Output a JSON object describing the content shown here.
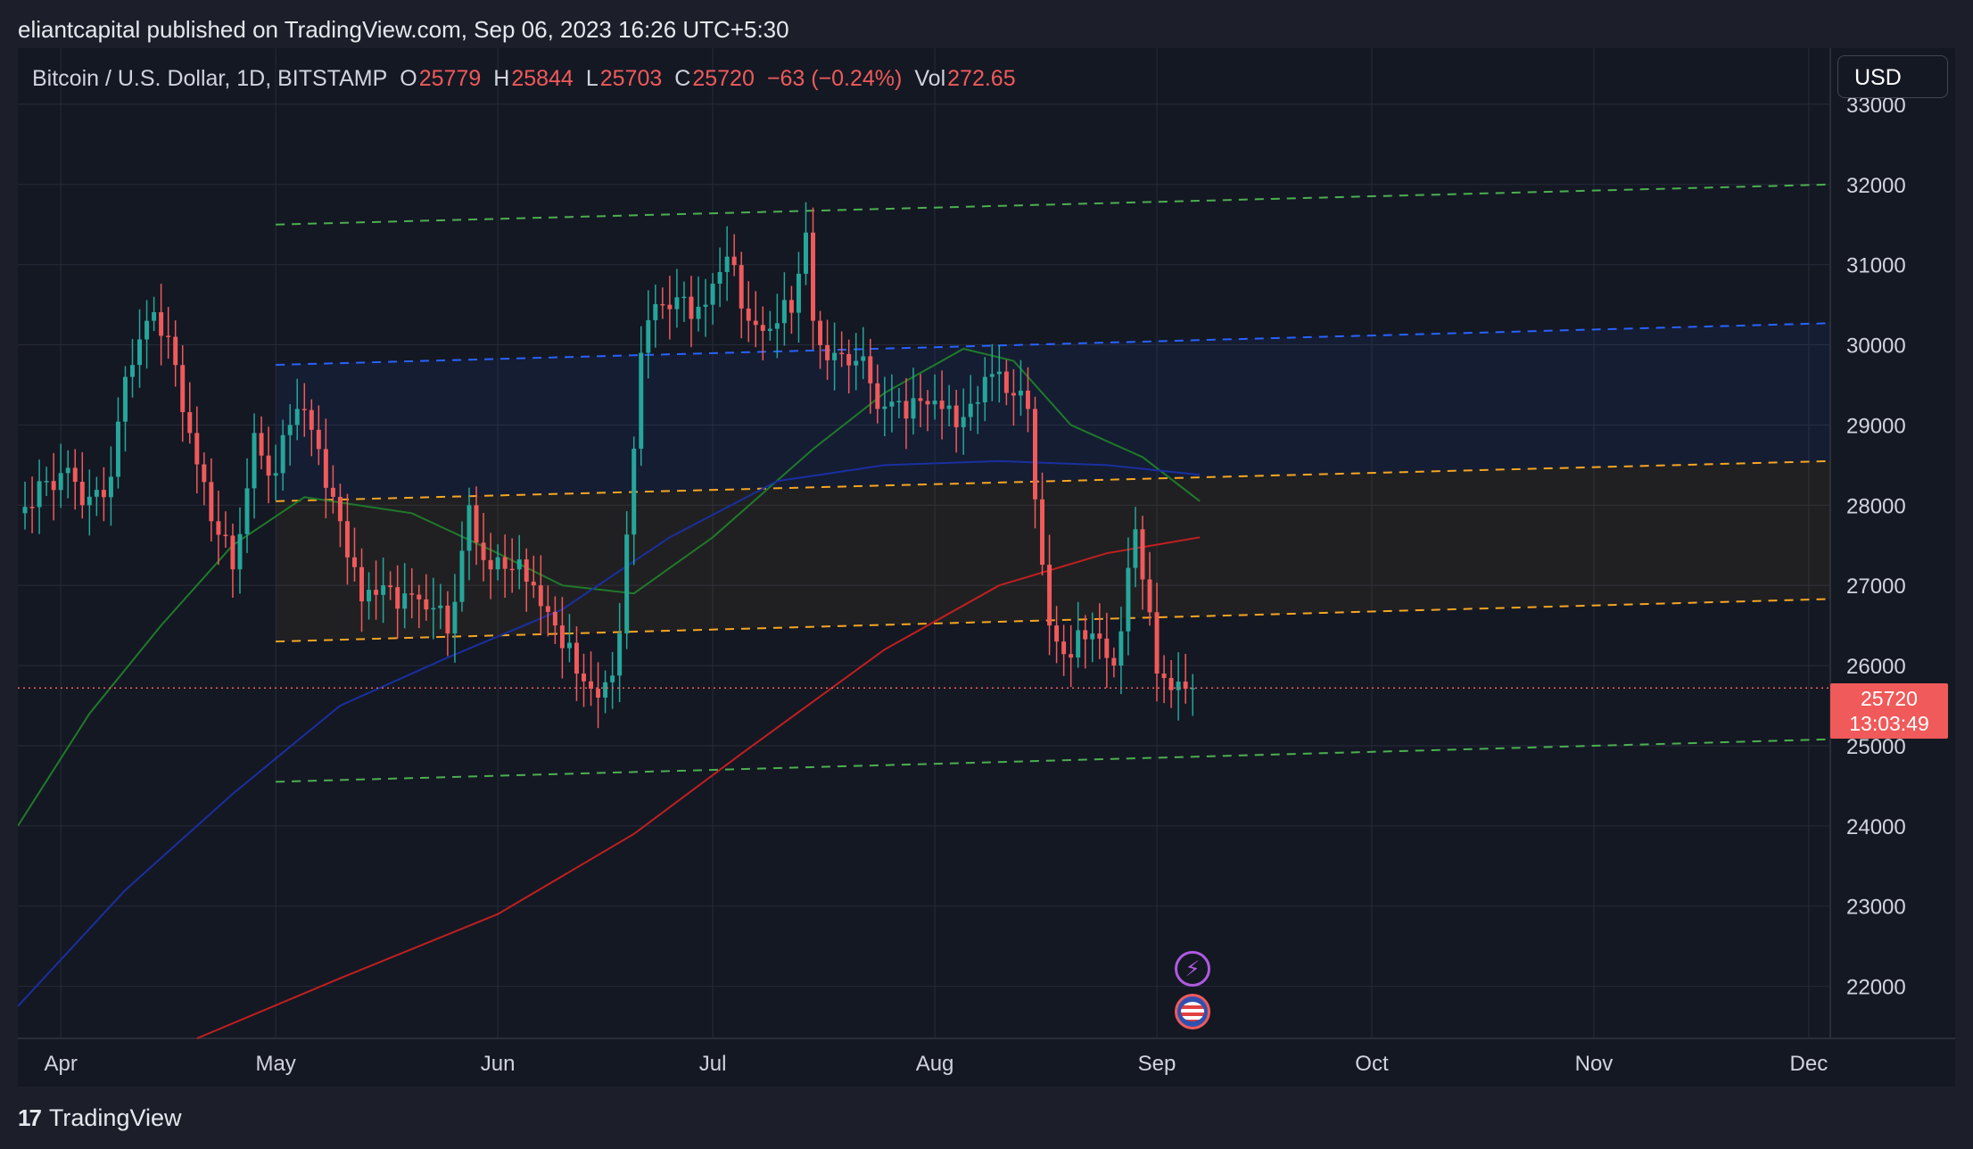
{
  "header": {
    "published": "eliantcapital published on TradingView.com, Sep 06, 2023 16:26 UTC+5:30"
  },
  "legend": {
    "symbol": "Bitcoin / U.S. Dollar, 1D, BITSTAMP",
    "o_label": "O",
    "o_value": "25779",
    "h_label": "H",
    "h_value": "25844",
    "l_label": "L",
    "l_value": "25703",
    "c_label": "C",
    "c_value": "25720",
    "change": "−63 (−0.24%)",
    "vol_label": "Vol",
    "vol_value": "272.65"
  },
  "currency_button": "USD",
  "price_tag": {
    "price": "25720",
    "countdown": "13:03:49"
  },
  "footer": {
    "brand": "TradingView",
    "logo_mark": "17"
  },
  "colors": {
    "up": "#26a69a",
    "down": "#f05a5a",
    "grid": "#262b38",
    "ma_green": "#1f7a2a",
    "ma_blue": "#1a2fa0",
    "ma_red": "#c01f1f",
    "channel_green": "#4caf50",
    "channel_blue": "#2962ff",
    "channel_orange": "#f5a623"
  },
  "chart_data": {
    "type": "candlestick",
    "x_axis_labels": [
      "Apr",
      "May",
      "Jun",
      "Jul",
      "Aug",
      "Sep",
      "Oct",
      "Nov",
      "Dec"
    ],
    "x_axis_label_dates": [
      "2023-04-01",
      "2023-05-01",
      "2023-06-01",
      "2023-07-01",
      "2023-08-01",
      "2023-09-01",
      "2023-10-01",
      "2023-11-01",
      "2023-12-01"
    ],
    "y_axis_labels": [
      33000,
      32000,
      31000,
      30000,
      29000,
      28000,
      27000,
      26000,
      25000,
      24000,
      23000,
      22000
    ],
    "xlim": [
      "2023-03-26",
      "2023-12-04"
    ],
    "ylim": [
      21350,
      33700
    ],
    "last_price": 25720,
    "closes": [
      [
        "2023-03-26",
        27900
      ],
      [
        "2023-03-29",
        28300
      ],
      [
        "2023-04-01",
        28400
      ],
      [
        "2023-04-04",
        28000
      ],
      [
        "2023-04-07",
        28100
      ],
      [
        "2023-04-10",
        29600
      ],
      [
        "2023-04-13",
        30300
      ],
      [
        "2023-04-16",
        30100
      ],
      [
        "2023-04-19",
        28900
      ],
      [
        "2023-04-22",
        27800
      ],
      [
        "2023-04-25",
        27200
      ],
      [
        "2023-04-28",
        28900
      ],
      [
        "2023-05-01",
        28400
      ],
      [
        "2023-05-04",
        29200
      ],
      [
        "2023-05-07",
        28700
      ],
      [
        "2023-05-10",
        27800
      ],
      [
        "2023-05-13",
        26800
      ],
      [
        "2023-05-16",
        27000
      ],
      [
        "2023-05-19",
        26900
      ],
      [
        "2023-05-22",
        26700
      ],
      [
        "2023-05-25",
        26400
      ],
      [
        "2023-05-28",
        28000
      ],
      [
        "2023-05-31",
        27200
      ],
      [
        "2023-06-03",
        27200
      ],
      [
        "2023-06-06",
        27000
      ],
      [
        "2023-06-09",
        26500
      ],
      [
        "2023-06-12",
        25900
      ],
      [
        "2023-06-15",
        25600
      ],
      [
        "2023-06-18",
        26400
      ],
      [
        "2023-06-21",
        29900
      ],
      [
        "2023-06-24",
        30500
      ],
      [
        "2023-06-27",
        30600
      ],
      [
        "2023-06-30",
        30500
      ],
      [
        "2023-07-03",
        31100
      ],
      [
        "2023-07-06",
        30300
      ],
      [
        "2023-07-09",
        30200
      ],
      [
        "2023-07-12",
        30400
      ],
      [
        "2023-07-14",
        31400
      ],
      [
        "2023-07-15",
        30300
      ],
      [
        "2023-07-18",
        29900
      ],
      [
        "2023-07-21",
        29800
      ],
      [
        "2023-07-24",
        29200
      ],
      [
        "2023-07-27",
        29300
      ],
      [
        "2023-07-30",
        29300
      ],
      [
        "2023-08-02",
        29200
      ],
      [
        "2023-08-05",
        29100
      ],
      [
        "2023-08-08",
        29600
      ],
      [
        "2023-08-11",
        29400
      ],
      [
        "2023-08-14",
        29200
      ],
      [
        "2023-08-17",
        26500
      ],
      [
        "2023-08-20",
        26100
      ],
      [
        "2023-08-23",
        26400
      ],
      [
        "2023-08-26",
        26000
      ],
      [
        "2023-08-29",
        27700
      ],
      [
        "2023-09-01",
        25900
      ],
      [
        "2023-09-04",
        25800
      ],
      [
        "2023-09-06",
        25720
      ]
    ],
    "moving_averages": [
      {
        "color_key": "ma_green",
        "points": [
          [
            "2023-03-26",
            24000
          ],
          [
            "2023-04-05",
            25400
          ],
          [
            "2023-04-15",
            26500
          ],
          [
            "2023-04-25",
            27500
          ],
          [
            "2023-05-05",
            28100
          ],
          [
            "2023-05-20",
            27900
          ],
          [
            "2023-06-01",
            27400
          ],
          [
            "2023-06-10",
            27000
          ],
          [
            "2023-06-20",
            26900
          ],
          [
            "2023-07-01",
            27600
          ],
          [
            "2023-07-15",
            28700
          ],
          [
            "2023-07-25",
            29400
          ],
          [
            "2023-08-05",
            29950
          ],
          [
            "2023-08-12",
            29800
          ],
          [
            "2023-08-20",
            29000
          ],
          [
            "2023-08-30",
            28600
          ],
          [
            "2023-09-07",
            28050
          ]
        ]
      },
      {
        "color_key": "ma_blue",
        "points": [
          [
            "2023-03-26",
            21750
          ],
          [
            "2023-04-10",
            23200
          ],
          [
            "2023-04-25",
            24400
          ],
          [
            "2023-05-10",
            25500
          ],
          [
            "2023-05-25",
            26100
          ],
          [
            "2023-06-10",
            26700
          ],
          [
            "2023-06-25",
            27600
          ],
          [
            "2023-07-10",
            28300
          ],
          [
            "2023-07-25",
            28500
          ],
          [
            "2023-08-10",
            28550
          ],
          [
            "2023-08-25",
            28500
          ],
          [
            "2023-09-07",
            28380
          ]
        ]
      },
      {
        "color_key": "ma_red",
        "points": [
          [
            "2023-04-20",
            21350
          ],
          [
            "2023-05-10",
            22100
          ],
          [
            "2023-06-01",
            22900
          ],
          [
            "2023-06-20",
            23900
          ],
          [
            "2023-07-05",
            24900
          ],
          [
            "2023-07-25",
            26200
          ],
          [
            "2023-08-10",
            27000
          ],
          [
            "2023-08-25",
            27400
          ],
          [
            "2023-09-07",
            27600
          ]
        ]
      }
    ],
    "channel_lines": [
      {
        "color_key": "channel_green",
        "from": [
          "2023-05-01",
          31500
        ],
        "to": [
          "2023-12-04",
          32000
        ]
      },
      {
        "color_key": "channel_blue",
        "from": [
          "2023-05-01",
          29750
        ],
        "to": [
          "2023-12-04",
          30270
        ]
      },
      {
        "color_key": "channel_orange",
        "from": [
          "2023-05-01",
          28050
        ],
        "to": [
          "2023-12-04",
          28550
        ]
      },
      {
        "color_key": "channel_orange",
        "from": [
          "2023-05-01",
          26300
        ],
        "to": [
          "2023-12-04",
          26830
        ]
      },
      {
        "color_key": "channel_green",
        "from": [
          "2023-05-01",
          24550
        ],
        "to": [
          "2023-12-04",
          25080
        ]
      }
    ]
  }
}
